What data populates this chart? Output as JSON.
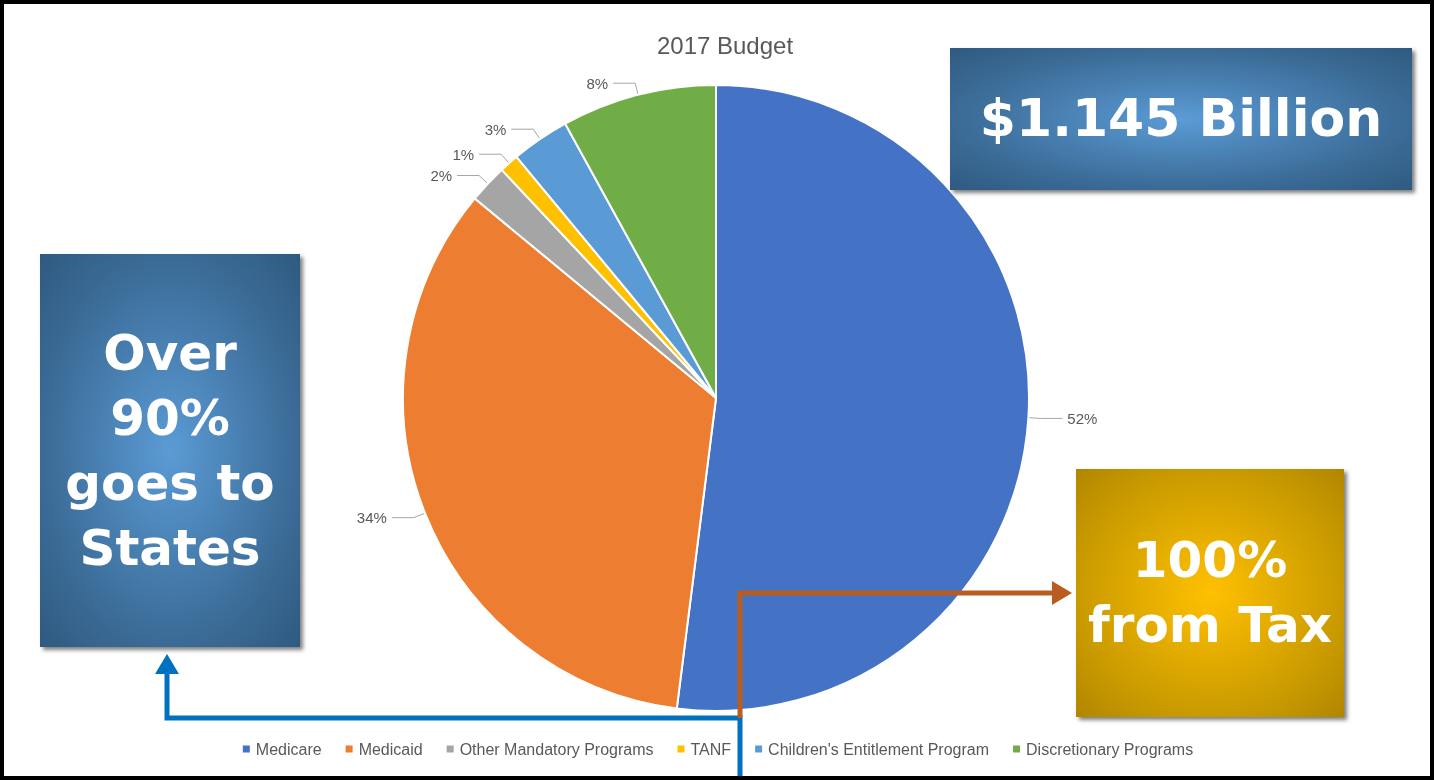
{
  "chart_data": {
    "type": "pie",
    "title": "2017 Budget",
    "categories": [
      "Medicare",
      "Medicaid",
      "Other Mandatory Programs",
      "TANF",
      "Children's Entitlement Program",
      "Discretionary Programs"
    ],
    "values": [
      52,
      34,
      2,
      1,
      3,
      8
    ],
    "colors": [
      "#4472c4",
      "#ed7d31",
      "#a5a5a5",
      "#ffc000",
      "#5b9bd5",
      "#70ad47"
    ],
    "value_labels": [
      "52%",
      "34%",
      "2%",
      "1%",
      "3%",
      "8%"
    ],
    "legend": "bottom",
    "annotations": [
      "$1.145 Billion",
      "Over 90% goes to States",
      "100% from Tax"
    ]
  }
}
